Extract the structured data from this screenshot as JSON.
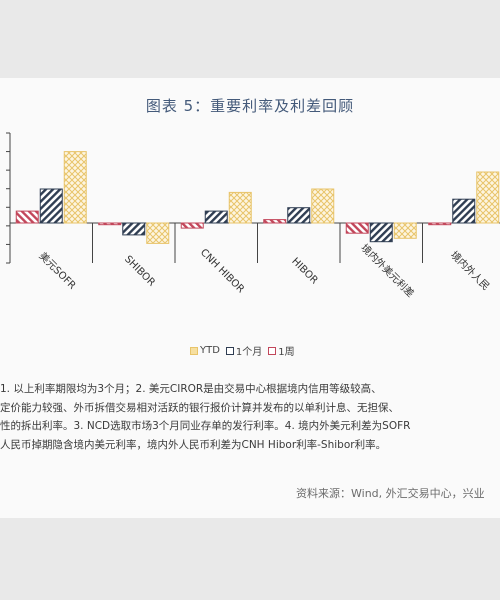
{
  "chart_data": {
    "type": "bar",
    "title": "图表 5：重要利率及利差回顾",
    "categories": [
      "美元SOFR",
      "SHIBOR",
      "CNH HIBOR",
      "HIBOR",
      "境内外美元利差",
      "境内外人民"
    ],
    "series": [
      {
        "name": "YTD",
        "values": [
          4.2,
          -1.2,
          1.8,
          2.0,
          -0.9,
          3.0
        ],
        "color": "#e8c46a",
        "pattern": "crosshatch"
      },
      {
        "name": "1个月",
        "values": [
          2.0,
          -0.7,
          0.7,
          0.9,
          -1.1,
          1.4
        ],
        "color": "#2f3d52",
        "pattern": "diagonal"
      },
      {
        "name": "1周",
        "values": [
          0.7,
          -0.1,
          -0.3,
          0.2,
          -0.6,
          -0.1
        ],
        "color": "#c2465a",
        "pattern": "diagonal"
      }
    ],
    "grid": false,
    "legend_position": "bottom"
  },
  "notes": [
    "1. 以上利率期限均为3个月；2. 美元CIROR是由交易中心根据境内信用等级较高、",
    "定价能力较强、外币拆借交易相对活跃的银行报价计算并发布的以单利计息、无担保、",
    "性的拆出利率。3. NCD选取市场3个月同业存单的发行利率。4. 境内外美元利差为SOFR",
    "人民币掉期隐含境内美元利率，境内外人民币利差为CNH Hibor利率-Shibor利率。"
  ],
  "source": "资料来源：Wind, 外汇交易中心，兴业"
}
